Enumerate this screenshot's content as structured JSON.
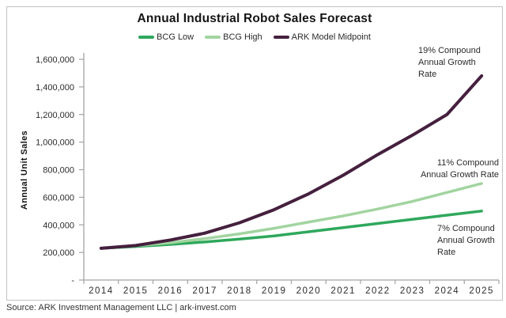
{
  "chart_data": {
    "type": "line",
    "title": "Annual Industrial Robot Sales Forecast",
    "ylabel": "Annual Unit Sales",
    "xlabel": "",
    "categories": [
      "2014",
      "2015",
      "2016",
      "2017",
      "2018",
      "2019",
      "2020",
      "2021",
      "2022",
      "2023",
      "2024",
      "2025"
    ],
    "series": [
      {
        "name": "BCG Low",
        "color": "#2fa85c",
        "stroke_width": 3.5,
        "values": [
          230000,
          243000,
          258000,
          276000,
          297000,
          320000,
          350000,
          380000,
          410000,
          440000,
          470000,
          500000
        ]
      },
      {
        "name": "BCG High",
        "color": "#a2d4a0",
        "stroke_width": 3.5,
        "values": [
          230000,
          248000,
          270000,
          300000,
          335000,
          375000,
          420000,
          465000,
          515000,
          570000,
          635000,
          700000
        ]
      },
      {
        "name": "ARK Model Midpoint",
        "color": "#45203e",
        "stroke_width": 4,
        "values": [
          230000,
          250000,
          290000,
          340000,
          415000,
          510000,
          625000,
          760000,
          910000,
          1050000,
          1200000,
          1480000
        ]
      }
    ],
    "ylim": [
      0,
      1600000
    ],
    "ytick_interval": 200000,
    "y_zero_label": "-",
    "grid": false,
    "legend_position": "top",
    "axis_color": "#a3a3a3"
  },
  "annotations": {
    "ark": {
      "lines": [
        "19% Compound",
        "Annual Growth",
        "Rate"
      ]
    },
    "bcg_high": {
      "lines": [
        "11% Compound",
        "Annual Growth Rate"
      ]
    },
    "bcg_low": {
      "lines": [
        "7% Compound",
        "Annual Growth",
        "Rate"
      ]
    }
  },
  "source": "Source: ARK Investment Management LLC | ark-invest.com"
}
